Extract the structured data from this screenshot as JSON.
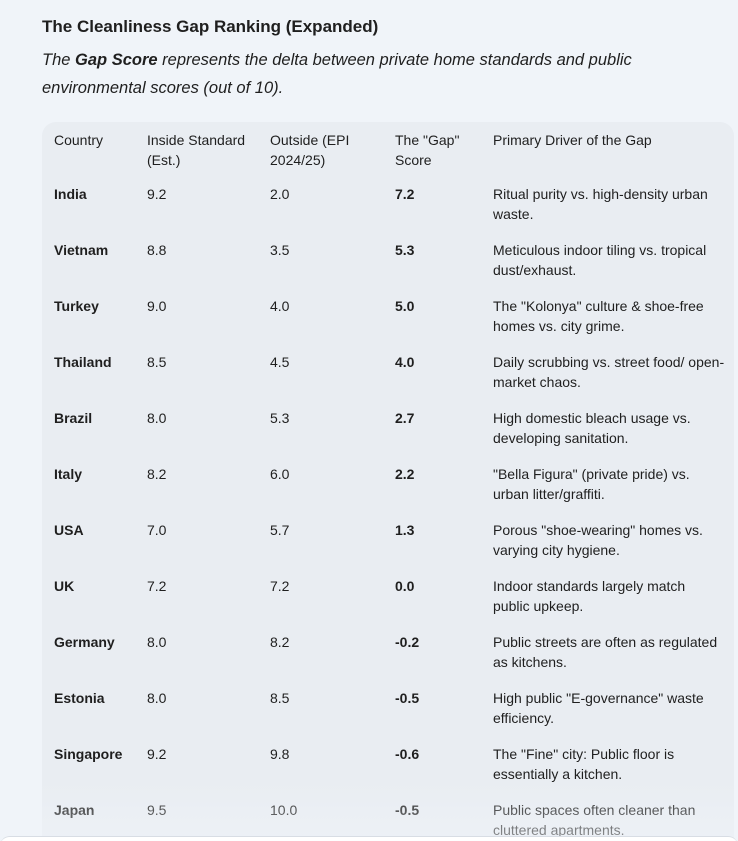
{
  "heading": "The Cleanliness Gap Ranking (Expanded)",
  "intro": {
    "pre": "The ",
    "bold": "Gap Score",
    "post": " represents the delta between private home standards and public environmental scores (out of 10)."
  },
  "table": {
    "headers": [
      "Country",
      "Inside Standard (Est.)",
      "Outside (EPI 2024/25)",
      "The \"Gap\" Score",
      "Primary Driver of the Gap"
    ],
    "rows": [
      {
        "country": "India",
        "inside": "9.2",
        "outside": "2.0",
        "gap": "7.2",
        "driver": "Ritual purity vs. high-density urban waste."
      },
      {
        "country": "Vietnam",
        "inside": "8.8",
        "outside": "3.5",
        "gap": "5.3",
        "driver": "Meticulous indoor tiling vs. tropical dust/exhaust."
      },
      {
        "country": "Turkey",
        "inside": "9.0",
        "outside": "4.0",
        "gap": "5.0",
        "driver": "The \"Kolonya\" culture & shoe-free homes vs. city grime."
      },
      {
        "country": "Thailand",
        "inside": "8.5",
        "outside": "4.5",
        "gap": "4.0",
        "driver": "Daily scrubbing vs. street food/ open-market chaos."
      },
      {
        "country": "Brazil",
        "inside": "8.0",
        "outside": "5.3",
        "gap": "2.7",
        "driver": "High domestic bleach usage vs. developing sanitation."
      },
      {
        "country": "Italy",
        "inside": "8.2",
        "outside": "6.0",
        "gap": "2.2",
        "driver": "\"Bella Figura\" (private pride) vs. urban litter/graffiti."
      },
      {
        "country": "USA",
        "inside": "7.0",
        "outside": "5.7",
        "gap": "1.3",
        "driver": "Porous \"shoe-wearing\" homes vs. varying city hygiene."
      },
      {
        "country": "UK",
        "inside": "7.2",
        "outside": "7.2",
        "gap": "0.0",
        "driver": "Indoor standards largely match public upkeep."
      },
      {
        "country": "Germany",
        "inside": "8.0",
        "outside": "8.2",
        "gap": "-0.2",
        "driver": "Public streets are often as regulated as kitchens."
      },
      {
        "country": "Estonia",
        "inside": "8.0",
        "outside": "8.5",
        "gap": "-0.5",
        "driver": "High public \"E-governance\" waste efficiency."
      },
      {
        "country": "Singapore",
        "inside": "9.2",
        "outside": "9.8",
        "gap": "-0.6",
        "driver": "The \"Fine\" city: Public floor is essentially a kitchen."
      },
      {
        "country": "Japan",
        "inside": "9.5",
        "outside": "10.0",
        "gap": "-0.5",
        "driver": "Public spaces often cleaner than cluttered apartments."
      }
    ]
  }
}
